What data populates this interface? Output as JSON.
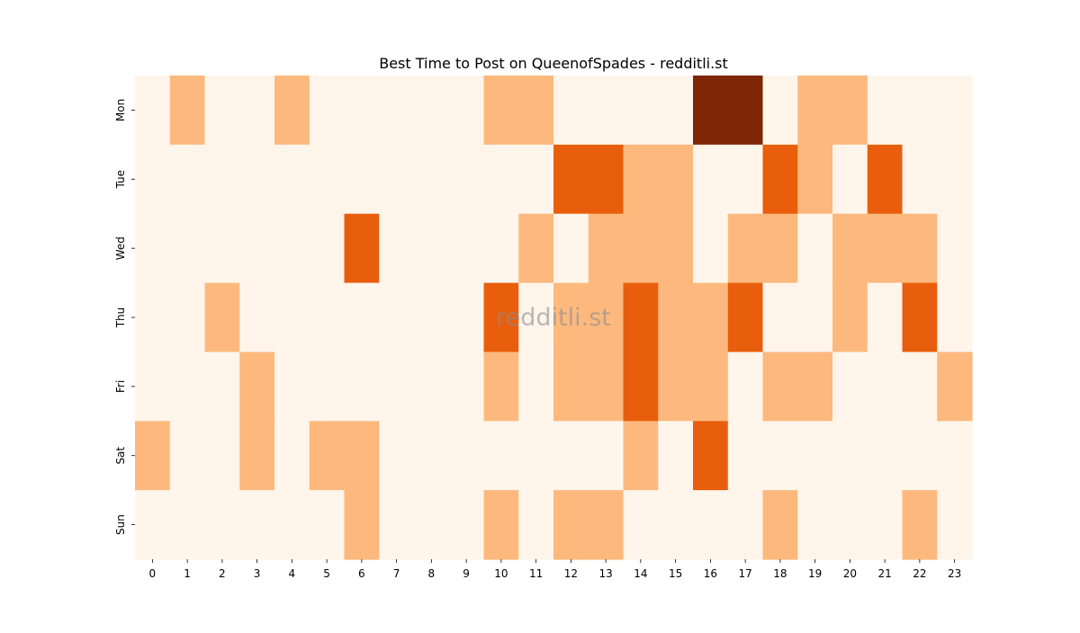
{
  "chart_data": {
    "type": "heatmap",
    "title": "Best Time to Post on QueenofSpades - redditli.st",
    "watermark": "redditli.st",
    "xlabel": "",
    "ylabel": "",
    "x_categories": [
      "0",
      "1",
      "2",
      "3",
      "4",
      "5",
      "6",
      "7",
      "8",
      "9",
      "10",
      "11",
      "12",
      "13",
      "14",
      "15",
      "16",
      "17",
      "18",
      "19",
      "20",
      "21",
      "22",
      "23"
    ],
    "y_categories": [
      "Mon",
      "Tue",
      "Wed",
      "Thu",
      "Fri",
      "Sat",
      "Sun"
    ],
    "colormap": "Oranges",
    "value_range": [
      0,
      3
    ],
    "values": [
      [
        0,
        1,
        0,
        0,
        1,
        0,
        0,
        0,
        0,
        0,
        1,
        1,
        0,
        0,
        0,
        0,
        3,
        3,
        0,
        1,
        1,
        0,
        0,
        0
      ],
      [
        0,
        0,
        0,
        0,
        0,
        0,
        0,
        0,
        0,
        0,
        0,
        0,
        2,
        2,
        1,
        1,
        0,
        0,
        2,
        1,
        0,
        2,
        0,
        0
      ],
      [
        0,
        0,
        0,
        0,
        0,
        0,
        2,
        0,
        0,
        0,
        0,
        1,
        0,
        1,
        1,
        1,
        0,
        1,
        1,
        0,
        1,
        1,
        1,
        0
      ],
      [
        0,
        0,
        1,
        0,
        0,
        0,
        0,
        0,
        0,
        0,
        2,
        0,
        1,
        1,
        2,
        1,
        1,
        2,
        0,
        0,
        1,
        0,
        2,
        0
      ],
      [
        0,
        0,
        0,
        1,
        0,
        0,
        0,
        0,
        0,
        0,
        1,
        0,
        1,
        1,
        2,
        1,
        1,
        0,
        1,
        1,
        0,
        0,
        0,
        1
      ],
      [
        1,
        0,
        0,
        1,
        0,
        1,
        1,
        0,
        0,
        0,
        0,
        0,
        0,
        0,
        1,
        0,
        2,
        0,
        0,
        0,
        0,
        0,
        0,
        0
      ],
      [
        0,
        0,
        0,
        0,
        0,
        0,
        1,
        0,
        0,
        0,
        1,
        0,
        1,
        1,
        0,
        0,
        0,
        0,
        1,
        0,
        0,
        0,
        1,
        0
      ]
    ],
    "level_colors": [
      "#fff5eb",
      "#fdb97d",
      "#e95e0d",
      "#7f2704"
    ],
    "grid": false,
    "legend": "none"
  }
}
